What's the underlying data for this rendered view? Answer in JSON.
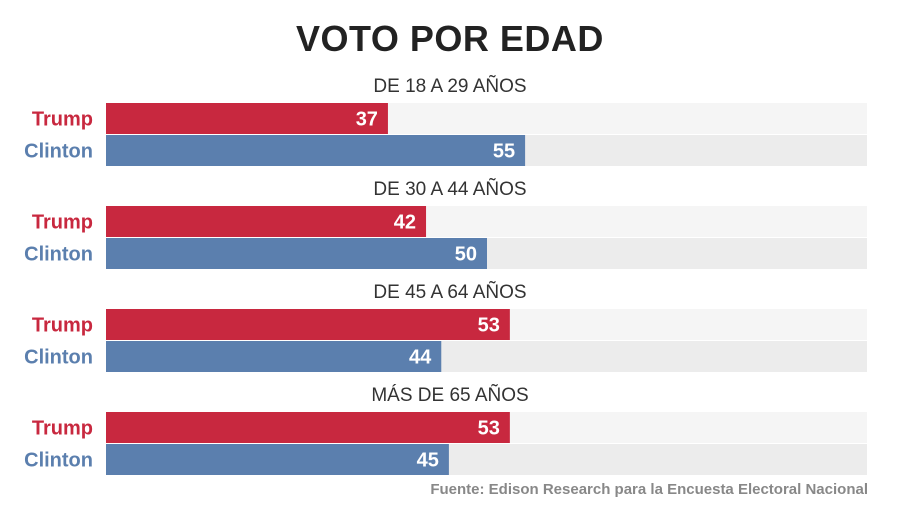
{
  "chart_data": {
    "type": "bar",
    "orientation": "horizontal",
    "title": "VOTO POR EDAD",
    "categories": [
      "DE 18 A 29 AÑOS",
      "DE 30 A 44 AÑOS",
      "DE 45 A 64 AÑOS",
      "MÁS DE 65 AÑOS"
    ],
    "series": [
      {
        "name": "Trump",
        "values": [
          37,
          42,
          53,
          53
        ],
        "color": "#c8283f"
      },
      {
        "name": "Clinton",
        "values": [
          55,
          50,
          44,
          45
        ],
        "color": "#5b7fae"
      }
    ],
    "xlim": [
      0,
      100
    ],
    "track_color_light": "#f5f5f5",
    "track_color_dark": "#ececec",
    "data_labels": true,
    "grid": false,
    "legend": "none"
  },
  "source": "Fuente: Edison Research para la Encuesta Electoral Nacional"
}
